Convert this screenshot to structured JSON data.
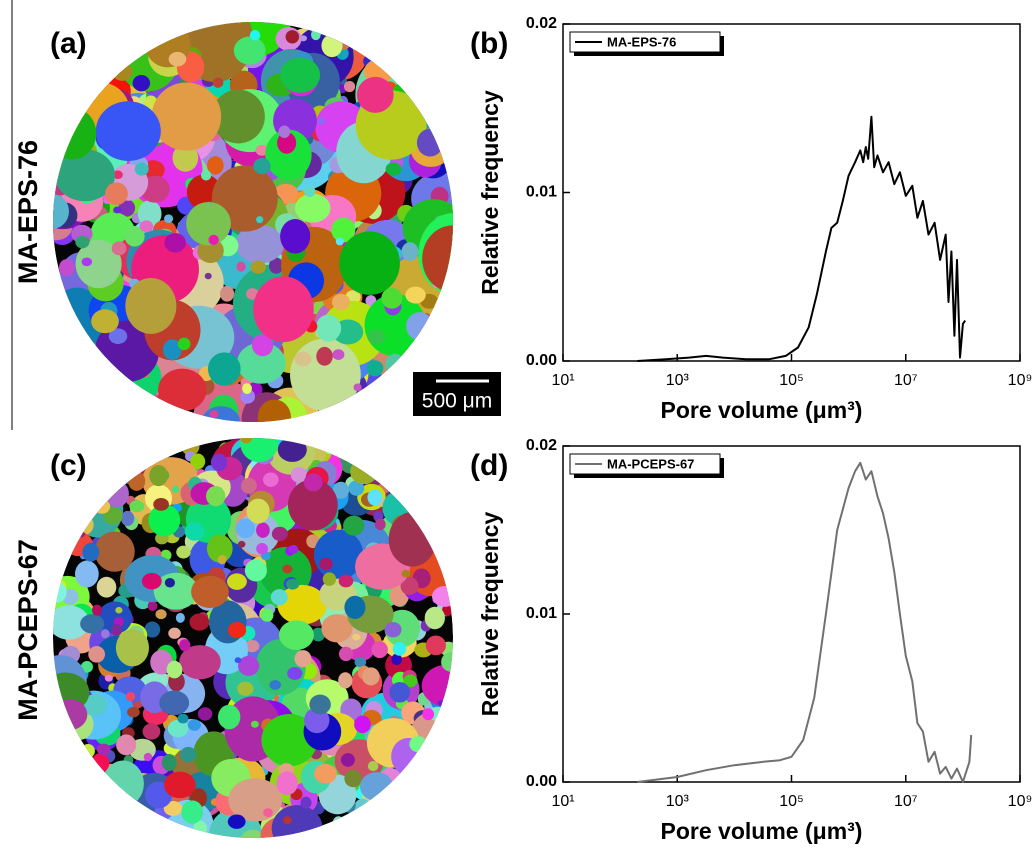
{
  "panels": [
    {
      "label": "(a)",
      "sample": "MA-EPS-76"
    },
    {
      "label": "(b)"
    },
    {
      "label": "(c)",
      "sample": "MA-PCEPS-67"
    },
    {
      "label": "(d)"
    }
  ],
  "scale_bar": "500 μm",
  "chart_data": [
    {
      "type": "line",
      "x_label": "Pore volume (μm³)",
      "y_label": "Relative frequency",
      "xscale": "log",
      "xlim": [
        10,
        1000000000
      ],
      "xticks": [
        {
          "value": 10,
          "label": "10¹"
        },
        {
          "value": 1000,
          "label": "10³"
        },
        {
          "value": 100000,
          "label": "10⁵"
        },
        {
          "value": 10000000,
          "label": "10⁷"
        },
        {
          "value": 1000000000,
          "label": "10⁹"
        }
      ],
      "ylim": [
        0,
        0.02
      ],
      "yticks": [
        {
          "value": 0,
          "label": "0.00"
        },
        0.01,
        0.02
      ],
      "legend": "upper left",
      "x": [
        200,
        630,
        1600,
        3200,
        6300,
        16000,
        40000,
        79000,
        130000,
        200000,
        280000,
        400000,
        500000,
        630000,
        790000,
        1000000,
        1300000,
        1600000,
        1800000,
        2000000,
        2200000,
        2500000,
        2800000,
        3200000,
        4000000,
        5000000,
        6300000,
        7900000,
        10000000,
        13000000,
        16000000,
        20000000,
        25000000,
        32000000,
        40000000,
        50000000,
        56000000,
        63000000,
        71000000,
        79000000,
        89000000,
        100000000,
        110000000
      ],
      "series": [
        {
          "name": "MA-EPS-76",
          "color": "#000000",
          "values": [
            0,
            0.0001,
            0.0002,
            0.0003,
            0.0002,
            0.0001,
            0.0001,
            0.0003,
            0.0008,
            0.002,
            0.004,
            0.0065,
            0.0079,
            0.0082,
            0.0095,
            0.011,
            0.0118,
            0.0125,
            0.0118,
            0.0127,
            0.012,
            0.0145,
            0.0115,
            0.0122,
            0.0112,
            0.0118,
            0.0105,
            0.0112,
            0.0098,
            0.0104,
            0.0085,
            0.0095,
            0.0075,
            0.0082,
            0.006,
            0.0075,
            0.0035,
            0.0065,
            0.0015,
            0.006,
            0.0002,
            0.0022,
            0.0024
          ]
        }
      ]
    },
    {
      "type": "line",
      "x_label": "Pore volume (μm³)",
      "y_label": "Relative frequency",
      "xscale": "log",
      "xlim": [
        10,
        1000000000
      ],
      "xticks": [
        {
          "value": 10,
          "label": "10¹"
        },
        {
          "value": 1000,
          "label": "10³"
        },
        {
          "value": 100000,
          "label": "10⁵"
        },
        {
          "value": 10000000,
          "label": "10⁷"
        },
        {
          "value": 1000000000,
          "label": "10⁹"
        }
      ],
      "ylim": [
        0,
        0.02
      ],
      "yticks": [
        {
          "value": 0,
          "label": "0.00"
        },
        0.01,
        0.02
      ],
      "legend": "upper left",
      "x": [
        200,
        1000,
        3200,
        10000,
        32000,
        63000,
        100000,
        160000,
        250000,
        400000,
        630000,
        1000000,
        1300000,
        1600000,
        2000000,
        2500000,
        3200000,
        4000000,
        5000000,
        6300000,
        7900000,
        10000000,
        13000000,
        16000000,
        20000000,
        25000000,
        32000000,
        40000000,
        50000000,
        63000000,
        79000000,
        100000000,
        130000000,
        140000000
      ],
      "series": [
        {
          "name": "MA-PCEPS-67",
          "color": "#707070",
          "values": [
            0,
            0.0003,
            0.0007,
            0.001,
            0.0012,
            0.0013,
            0.0015,
            0.0025,
            0.005,
            0.01,
            0.015,
            0.0175,
            0.0185,
            0.019,
            0.018,
            0.0185,
            0.017,
            0.016,
            0.0145,
            0.0125,
            0.01,
            0.0075,
            0.006,
            0.0035,
            0.003,
            0.0012,
            0.0018,
            0.0005,
            0.0009,
            0.0002,
            0.0008,
            0,
            0.0012,
            0.0028
          ]
        }
      ]
    }
  ]
}
